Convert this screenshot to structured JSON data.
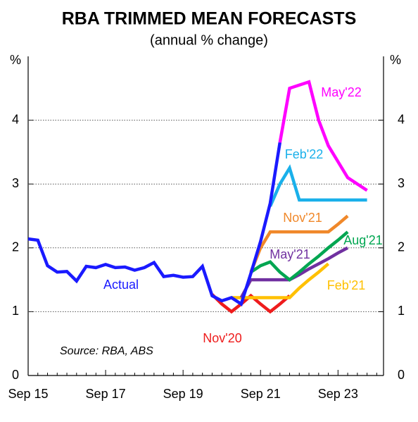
{
  "chart_data": {
    "type": "line",
    "title": "RBA TRIMMED MEAN FORECASTS",
    "subtitle": "(annual % change)",
    "y_unit": "%",
    "y2_unit": "%",
    "annotation": "Source: RBA, ABS",
    "categories": [
      "Sep 15",
      null,
      null,
      null,
      null,
      null,
      null,
      null,
      "Sep 17",
      null,
      null,
      null,
      null,
      null,
      null,
      null,
      "Sep 19",
      null,
      null,
      null,
      null,
      null,
      null,
      null,
      "Sep 21",
      null,
      null,
      null,
      null,
      null,
      null,
      null,
      "Sep 23",
      null,
      null,
      null,
      null
    ],
    "ylim": [
      0,
      5
    ],
    "yticks": [
      0,
      1,
      2,
      3,
      4
    ],
    "y2lim": [
      0,
      5
    ],
    "y2ticks": [
      0,
      1,
      2,
      3,
      4
    ],
    "grid": true,
    "series": [
      {
        "name": "Actual",
        "color": "#1a1aff",
        "values": [
          2.14,
          2.12,
          1.72,
          1.62,
          1.63,
          1.48,
          1.71,
          1.69,
          1.74,
          1.69,
          1.7,
          1.65,
          1.69,
          1.77,
          1.55,
          1.57,
          1.54,
          1.55,
          1.71,
          1.25,
          1.17,
          1.22,
          1.12,
          1.6,
          2.1,
          2.7,
          3.65,
          null,
          null,
          null,
          null,
          null,
          null,
          null,
          null,
          null,
          null
        ]
      },
      {
        "name": "Nov'20",
        "color": "#ee1c1c",
        "values": [
          null,
          null,
          null,
          null,
          null,
          null,
          null,
          null,
          null,
          null,
          null,
          null,
          null,
          null,
          null,
          null,
          null,
          null,
          null,
          1.27,
          1.12,
          1.0,
          1.12,
          1.25,
          1.12,
          1.0,
          1.12,
          1.25,
          null,
          null,
          null,
          null,
          null,
          null,
          null,
          null,
          null
        ]
      },
      {
        "name": "Feb'21",
        "color": "#ffc000",
        "values": [
          null,
          null,
          null,
          null,
          null,
          null,
          null,
          null,
          null,
          null,
          null,
          null,
          null,
          null,
          null,
          null,
          null,
          null,
          null,
          null,
          null,
          1.22,
          1.22,
          1.22,
          1.22,
          1.22,
          1.22,
          1.22,
          1.37,
          1.5,
          1.62,
          1.75,
          null,
          null,
          null,
          null,
          null
        ]
      },
      {
        "name": "May'21",
        "color": "#7030a0",
        "values": [
          null,
          null,
          null,
          null,
          null,
          null,
          null,
          null,
          null,
          null,
          null,
          null,
          null,
          null,
          null,
          null,
          null,
          null,
          null,
          null,
          null,
          null,
          1.22,
          1.5,
          1.5,
          1.5,
          1.5,
          1.5,
          1.58,
          1.67,
          1.75,
          1.83,
          1.92,
          2.0,
          null,
          null,
          null
        ]
      },
      {
        "name": "Aug'21",
        "color": "#00a651",
        "values": [
          null,
          null,
          null,
          null,
          null,
          null,
          null,
          null,
          null,
          null,
          null,
          null,
          null,
          null,
          null,
          null,
          null,
          null,
          null,
          null,
          null,
          null,
          null,
          1.62,
          1.72,
          1.78,
          1.62,
          1.5,
          1.62,
          1.75,
          1.87,
          2.0,
          2.12,
          2.25,
          null,
          null,
          null
        ]
      },
      {
        "name": "Nov'21",
        "color": "#f0882a",
        "values": [
          null,
          null,
          null,
          null,
          null,
          null,
          null,
          null,
          null,
          null,
          null,
          null,
          null,
          null,
          null,
          null,
          null,
          null,
          null,
          null,
          null,
          null,
          null,
          1.62,
          2.0,
          2.25,
          2.25,
          2.25,
          2.25,
          2.25,
          2.25,
          2.25,
          2.37,
          2.5,
          null,
          null,
          null
        ]
      },
      {
        "name": "Feb'22",
        "color": "#1ab0ea",
        "values": [
          null,
          null,
          null,
          null,
          null,
          null,
          null,
          null,
          null,
          null,
          null,
          null,
          null,
          null,
          null,
          null,
          null,
          null,
          null,
          null,
          null,
          null,
          null,
          null,
          null,
          2.65,
          3.0,
          3.25,
          2.75,
          2.75,
          2.75,
          2.75,
          2.75,
          2.75,
          2.75,
          2.75,
          null
        ]
      },
      {
        "name": "May'22",
        "color": "#ff00ff",
        "values": [
          null,
          null,
          null,
          null,
          null,
          null,
          null,
          null,
          null,
          null,
          null,
          null,
          null,
          null,
          null,
          null,
          null,
          null,
          null,
          null,
          null,
          null,
          null,
          null,
          null,
          null,
          3.65,
          4.5,
          4.55,
          4.6,
          4.0,
          3.6,
          3.35,
          3.1,
          3.0,
          2.9,
          null
        ]
      }
    ]
  }
}
